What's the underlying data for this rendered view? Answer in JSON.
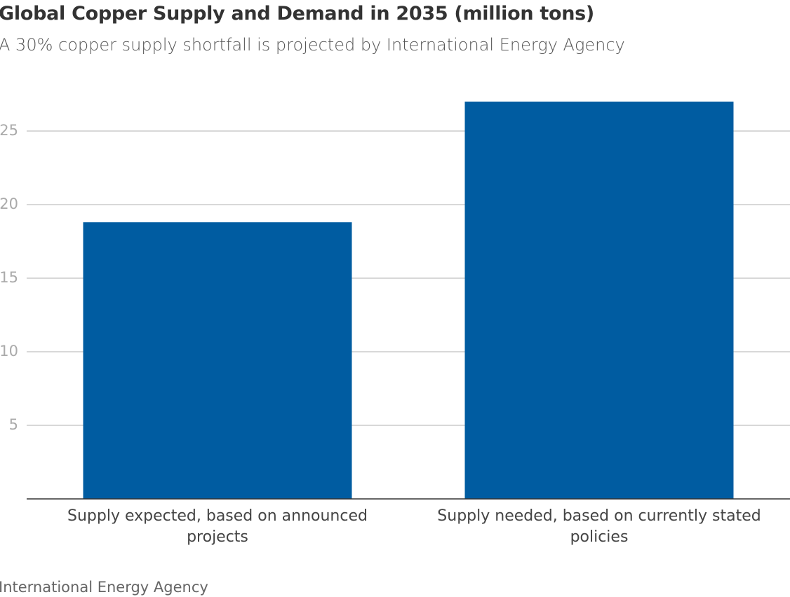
{
  "chart_data": {
    "type": "bar",
    "title": "Global Copper Supply and Demand in 2035 (million tons)",
    "subtitle": "A 30% copper supply shortfall is projected by International Energy Agency",
    "categories": [
      "Supply expected, based on announced projects",
      "Supply needed, based on currently stated policies"
    ],
    "values": [
      18.8,
      27
    ],
    "color": "#005ca1",
    "ylim": [
      0,
      28
    ],
    "yticks": [
      5,
      10,
      15,
      20,
      25
    ],
    "grid": true,
    "source": "International Energy Agency"
  }
}
